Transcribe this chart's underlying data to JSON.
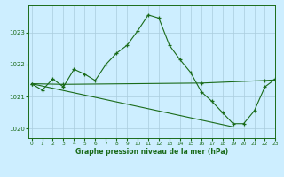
{
  "title": "Graphe pression niveau de la mer (hPa)",
  "background_color": "#cdeeff",
  "grid_color": "#aaccdd",
  "line_color": "#1a6b1a",
  "hours": [
    0,
    1,
    2,
    3,
    4,
    5,
    6,
    7,
    8,
    9,
    10,
    11,
    12,
    13,
    14,
    15,
    16,
    17,
    18,
    19,
    20,
    21,
    22,
    23
  ],
  "main_y": [
    1021.4,
    1021.2,
    1021.55,
    1021.3,
    1021.85,
    1021.7,
    1021.5,
    1022.0,
    1022.35,
    1022.6,
    1023.05,
    1023.55,
    1023.45,
    1022.6,
    1022.15,
    1021.75,
    1021.15,
    1020.85,
    1020.5,
    1020.15,
    1020.15,
    1020.55,
    1021.3,
    1021.55
  ],
  "flat_x": [
    0,
    3,
    16,
    22,
    23
  ],
  "flat_y": [
    1021.4,
    1021.38,
    1021.42,
    1021.5,
    1021.52
  ],
  "trend_x": [
    0,
    19
  ],
  "trend_y": [
    1021.4,
    1020.05
  ],
  "ylim": [
    1019.7,
    1023.85
  ],
  "yticks": [
    1020,
    1021,
    1022,
    1023
  ],
  "xlim": [
    -0.3,
    23
  ],
  "figwidth": 3.2,
  "figheight": 2.0,
  "dpi": 100
}
